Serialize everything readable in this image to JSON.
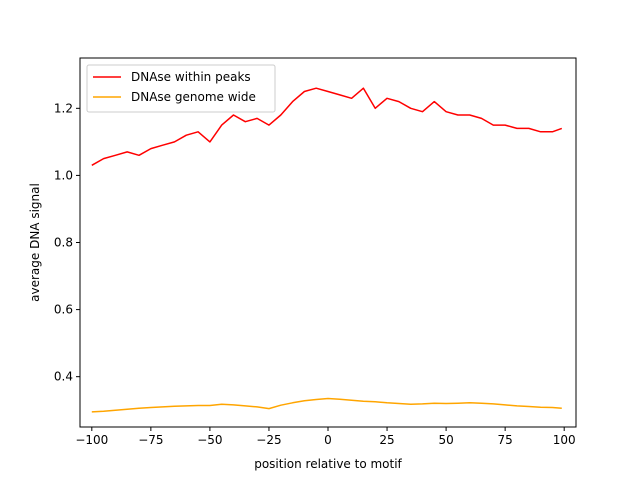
{
  "chart_data": {
    "type": "line",
    "title": "",
    "xlabel": "position relative to motif",
    "ylabel": "average DNA signal",
    "xlim": [
      -105,
      105
    ],
    "ylim": [
      0.25,
      1.35
    ],
    "xticks": [
      -100,
      -75,
      -50,
      -25,
      0,
      25,
      50,
      75,
      100
    ],
    "xtick_labels": [
      "−100",
      "−75",
      "−50",
      "−25",
      "0",
      "25",
      "50",
      "75",
      "100"
    ],
    "yticks": [
      0.4,
      0.6,
      0.8,
      1.0,
      1.2
    ],
    "ytick_labels": [
      "0.4",
      "0.6",
      "0.8",
      "1.0",
      "1.2"
    ],
    "grid": false,
    "legend_position": "top-left",
    "series": [
      {
        "name": "DNAse within peaks",
        "color": "#ff0000",
        "x": [
          -100,
          -95,
          -90,
          -85,
          -80,
          -75,
          -70,
          -65,
          -60,
          -55,
          -50,
          -45,
          -40,
          -35,
          -30,
          -25,
          -20,
          -15,
          -10,
          -5,
          0,
          5,
          10,
          15,
          20,
          25,
          30,
          35,
          40,
          45,
          50,
          55,
          60,
          65,
          70,
          75,
          80,
          85,
          90,
          95,
          99
        ],
        "y": [
          1.03,
          1.05,
          1.06,
          1.07,
          1.06,
          1.08,
          1.09,
          1.1,
          1.12,
          1.13,
          1.1,
          1.15,
          1.18,
          1.16,
          1.17,
          1.15,
          1.18,
          1.22,
          1.25,
          1.26,
          1.25,
          1.24,
          1.23,
          1.26,
          1.2,
          1.23,
          1.22,
          1.2,
          1.19,
          1.22,
          1.19,
          1.18,
          1.18,
          1.17,
          1.15,
          1.15,
          1.14,
          1.14,
          1.13,
          1.13,
          1.14
        ]
      },
      {
        "name": "DNAse genome wide",
        "color": "#ffa500",
        "x": [
          -100,
          -95,
          -90,
          -85,
          -80,
          -75,
          -70,
          -65,
          -60,
          -55,
          -50,
          -45,
          -40,
          -35,
          -30,
          -25,
          -20,
          -15,
          -10,
          -5,
          0,
          5,
          10,
          15,
          20,
          25,
          30,
          35,
          40,
          45,
          50,
          55,
          60,
          65,
          70,
          75,
          80,
          85,
          90,
          95,
          99
        ],
        "y": [
          0.295,
          0.297,
          0.3,
          0.303,
          0.306,
          0.308,
          0.31,
          0.312,
          0.313,
          0.314,
          0.314,
          0.318,
          0.316,
          0.313,
          0.31,
          0.305,
          0.315,
          0.322,
          0.328,
          0.332,
          0.335,
          0.333,
          0.33,
          0.327,
          0.325,
          0.322,
          0.32,
          0.318,
          0.319,
          0.321,
          0.32,
          0.321,
          0.322,
          0.321,
          0.319,
          0.316,
          0.313,
          0.311,
          0.309,
          0.308,
          0.306
        ]
      }
    ]
  }
}
